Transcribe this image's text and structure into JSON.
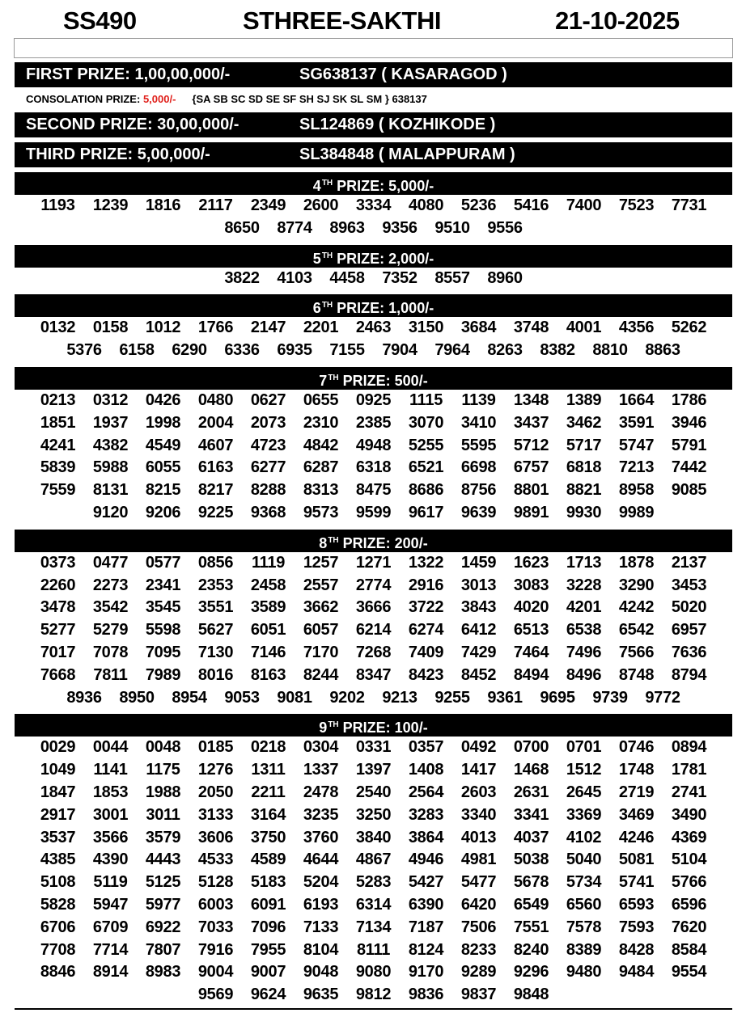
{
  "header": {
    "draw_code": "SS490",
    "lottery_name": "STHREE-SAKTHI",
    "date": "21-10-2025"
  },
  "top_prizes": [
    {
      "label": "FIRST PRIZE: 1,00,00,000/-",
      "ticket": "SG638137 ( KASARAGOD )"
    },
    {
      "label": "SECOND PRIZE: 30,00,000/-",
      "ticket": "SL124869 ( KOZHIKODE )"
    },
    {
      "label": "THIRD PRIZE: 5,00,000/-",
      "ticket": "SL384848 ( MALAPPURAM )"
    }
  ],
  "consolation": {
    "label": "CONSOLATION PRIZE: ",
    "amount": "5,000/-",
    "series": "{SA SB SC SD SE SF SH SJ SK SL SM } 638137"
  },
  "colors": {
    "consolation_amount": "#e0201b",
    "bar_bg": "#000000",
    "bar_text": "#ffffff"
  },
  "sections": [
    {
      "ordinal": "4",
      "suffix": "TH",
      "label": " PRIZE: 5,000/-",
      "numbers": [
        "1193",
        "1239",
        "1816",
        "2117",
        "2349",
        "2600",
        "3334",
        "4080",
        "5236",
        "5416",
        "7400",
        "7523",
        "7731",
        "8650",
        "8774",
        "8963",
        "9356",
        "9510",
        "9556"
      ]
    },
    {
      "ordinal": "5",
      "suffix": "TH",
      "label": " PRIZE: 2,000/-",
      "numbers": [
        "3822",
        "4103",
        "4458",
        "7352",
        "8557",
        "8960"
      ]
    },
    {
      "ordinal": "6",
      "suffix": "TH",
      "label": " PRIZE: 1,000/-",
      "numbers": [
        "0132",
        "0158",
        "1012",
        "1766",
        "2147",
        "2201",
        "2463",
        "3150",
        "3684",
        "3748",
        "4001",
        "4356",
        "5262",
        "5376",
        "6158",
        "6290",
        "6336",
        "6935",
        "7155",
        "7904",
        "7964",
        "8263",
        "8382",
        "8810",
        "8863"
      ]
    },
    {
      "ordinal": "7",
      "suffix": "TH",
      "label": " PRIZE: 500/-",
      "numbers": [
        "0213",
        "0312",
        "0426",
        "0480",
        "0627",
        "0655",
        "0925",
        "1115",
        "1139",
        "1348",
        "1389",
        "1664",
        "1786",
        "1851",
        "1937",
        "1998",
        "2004",
        "2073",
        "2310",
        "2385",
        "3070",
        "3410",
        "3437",
        "3462",
        "3591",
        "3946",
        "4241",
        "4382",
        "4549",
        "4607",
        "4723",
        "4842",
        "4948",
        "5255",
        "5595",
        "5712",
        "5717",
        "5747",
        "5791",
        "5839",
        "5988",
        "6055",
        "6163",
        "6277",
        "6287",
        "6318",
        "6521",
        "6698",
        "6757",
        "6818",
        "7213",
        "7442",
        "7559",
        "8131",
        "8215",
        "8217",
        "8288",
        "8313",
        "8475",
        "8686",
        "8756",
        "8801",
        "8821",
        "8958",
        "9085",
        "9120",
        "9206",
        "9225",
        "9368",
        "9573",
        "9599",
        "9617",
        "9639",
        "9891",
        "9930",
        "9989"
      ]
    },
    {
      "ordinal": "8",
      "suffix": "TH",
      "label": " PRIZE: 200/-",
      "numbers": [
        "0373",
        "0477",
        "0577",
        "0856",
        "1119",
        "1257",
        "1271",
        "1322",
        "1459",
        "1623",
        "1713",
        "1878",
        "2137",
        "2260",
        "2273",
        "2341",
        "2353",
        "2458",
        "2557",
        "2774",
        "2916",
        "3013",
        "3083",
        "3228",
        "3290",
        "3453",
        "3478",
        "3542",
        "3545",
        "3551",
        "3589",
        "3662",
        "3666",
        "3722",
        "3843",
        "4020",
        "4201",
        "4242",
        "5020",
        "5277",
        "5279",
        "5598",
        "5627",
        "6051",
        "6057",
        "6214",
        "6274",
        "6412",
        "6513",
        "6538",
        "6542",
        "6957",
        "7017",
        "7078",
        "7095",
        "7130",
        "7146",
        "7170",
        "7268",
        "7409",
        "7429",
        "7464",
        "7496",
        "7566",
        "7636",
        "7668",
        "7811",
        "7989",
        "8016",
        "8163",
        "8244",
        "8347",
        "8423",
        "8452",
        "8494",
        "8496",
        "8748",
        "8794",
        "8936",
        "8950",
        "8954",
        "9053",
        "9081",
        "9202",
        "9213",
        "9255",
        "9361",
        "9695",
        "9739",
        "9772"
      ]
    },
    {
      "ordinal": "9",
      "suffix": "TH",
      "label": " PRIZE: 100/-",
      "numbers": [
        "0029",
        "0044",
        "0048",
        "0185",
        "0218",
        "0304",
        "0331",
        "0357",
        "0492",
        "0700",
        "0701",
        "0746",
        "0894",
        "1049",
        "1141",
        "1175",
        "1276",
        "1311",
        "1337",
        "1397",
        "1408",
        "1417",
        "1468",
        "1512",
        "1748",
        "1781",
        "1847",
        "1853",
        "1988",
        "2050",
        "2211",
        "2478",
        "2540",
        "2564",
        "2603",
        "2631",
        "2645",
        "2719",
        "2741",
        "2917",
        "3001",
        "3011",
        "3133",
        "3164",
        "3235",
        "3250",
        "3283",
        "3340",
        "3341",
        "3369",
        "3469",
        "3490",
        "3537",
        "3566",
        "3579",
        "3606",
        "3750",
        "3760",
        "3840",
        "3864",
        "4013",
        "4037",
        "4102",
        "4246",
        "4369",
        "4385",
        "4390",
        "4443",
        "4533",
        "4589",
        "4644",
        "4867",
        "4946",
        "4981",
        "5038",
        "5040",
        "5081",
        "5104",
        "5108",
        "5119",
        "5125",
        "5128",
        "5183",
        "5204",
        "5283",
        "5427",
        "5477",
        "5678",
        "5734",
        "5741",
        "5766",
        "5828",
        "5947",
        "5977",
        "6003",
        "6091",
        "6193",
        "6314",
        "6390",
        "6420",
        "6549",
        "6560",
        "6593",
        "6596",
        "6706",
        "6709",
        "6922",
        "7033",
        "7096",
        "7133",
        "7134",
        "7187",
        "7506",
        "7551",
        "7578",
        "7593",
        "7620",
        "7708",
        "7714",
        "7807",
        "7916",
        "7955",
        "8104",
        "8111",
        "8124",
        "8233",
        "8240",
        "8389",
        "8428",
        "8584",
        "8846",
        "8914",
        "8983",
        "9004",
        "9007",
        "9048",
        "9080",
        "9170",
        "9289",
        "9296",
        "9480",
        "9484",
        "9554",
        "9569",
        "9624",
        "9635",
        "9812",
        "9836",
        "9837",
        "9848"
      ]
    }
  ]
}
